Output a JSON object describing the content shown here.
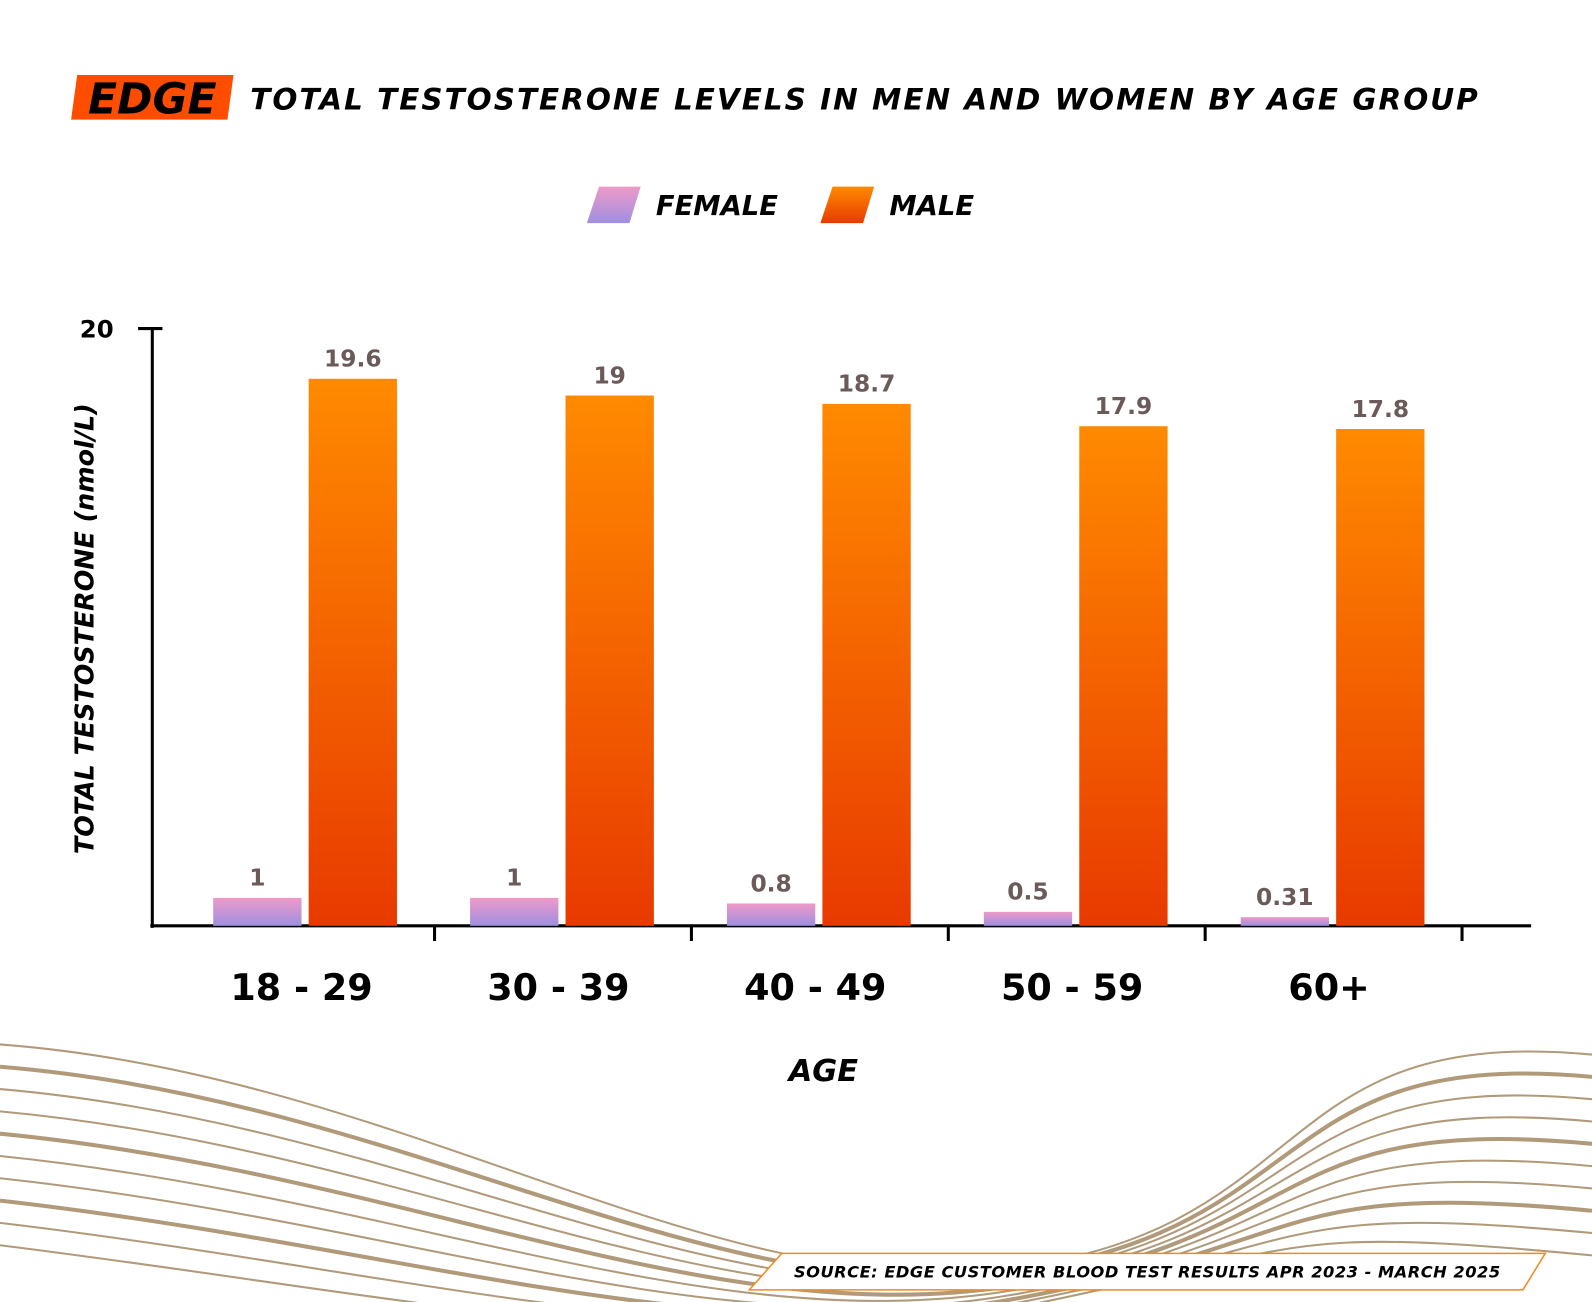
{
  "brand": {
    "logo_text": "EDGE",
    "color": "#ff4d00"
  },
  "chart_data": {
    "type": "bar",
    "title": "TOTAL TESTOSTERONE LEVELS IN MEN AND WOMEN BY AGE GROUP",
    "xlabel": "AGE",
    "ylabel": "TOTAL TESTOSTERONE (nmol/L)",
    "ylim": [
      0,
      21.4
    ],
    "yticks": [
      {
        "value": 20,
        "label": "20"
      }
    ],
    "categories": [
      "18 - 29",
      "30 - 39",
      "40 - 49",
      "50 - 59",
      "60+"
    ],
    "legend_position": "top-center",
    "series": [
      {
        "name": "FEMALE",
        "values": [
          1,
          1,
          0.8,
          0.5,
          0.31
        ],
        "labels": [
          "1",
          "1",
          "0.8",
          "0.5",
          "0.31"
        ],
        "color_top": "#ef9ac8",
        "color_bottom": "#9e8fe0"
      },
      {
        "name": "MALE",
        "values": [
          19.6,
          19,
          18.7,
          17.9,
          17.8
        ],
        "labels": [
          "19.6",
          "19",
          "18.7",
          "17.9",
          "17.8"
        ],
        "color_top": "#ff8a00",
        "color_bottom": "#e83a00"
      }
    ]
  },
  "source": "SOURCE: EDGE CUSTOMER BLOOD TEST RESULTS APR 2023 - MARCH 2025"
}
